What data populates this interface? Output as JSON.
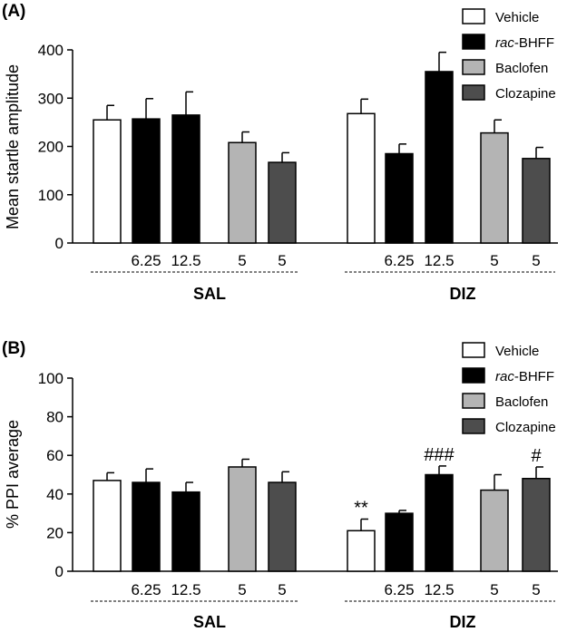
{
  "legend": [
    {
      "prefix": "",
      "italic": "",
      "suffix": "Vehicle",
      "color": "#ffffff"
    },
    {
      "prefix": "",
      "italic": "rac",
      "suffix": "-BHFF",
      "color": "#000000"
    },
    {
      "prefix": "",
      "italic": "",
      "suffix": "Baclofen",
      "color": "#b4b4b4"
    },
    {
      "prefix": "",
      "italic": "",
      "suffix": "Clozapine",
      "color": "#4d4d4d"
    }
  ],
  "chart_data": [
    {
      "type": "bar",
      "panel_label": "(A)",
      "ylabel": "Mean startle amplitude",
      "ylim": [
        0,
        400
      ],
      "yticks": [
        0,
        100,
        200,
        300,
        400
      ],
      "groups": [
        "SAL",
        "DIZ"
      ],
      "dose_labels": [
        "",
        "6.25",
        "12.5",
        "5",
        "5"
      ],
      "series": [
        {
          "name": "Vehicle",
          "values": [
            255,
            268
          ],
          "errors": [
            30,
            30
          ]
        },
        {
          "name": "rac-BHFF 6.25",
          "values": [
            257,
            185
          ],
          "errors": [
            42,
            20
          ]
        },
        {
          "name": "rac-BHFF 12.5",
          "values": [
            265,
            355
          ],
          "errors": [
            48,
            40
          ]
        },
        {
          "name": "Baclofen 5",
          "values": [
            208,
            228
          ],
          "errors": [
            22,
            27
          ]
        },
        {
          "name": "Clozapine 5",
          "values": [
            167,
            175
          ],
          "errors": [
            20,
            23
          ]
        }
      ],
      "annotations": [
        [
          "",
          "",
          "",
          "",
          ""
        ],
        [
          "",
          "",
          "",
          "",
          ""
        ]
      ]
    },
    {
      "type": "bar",
      "panel_label": "(B)",
      "ylabel": "% PPI average",
      "ylim": [
        0,
        100
      ],
      "yticks": [
        0,
        20,
        40,
        60,
        80,
        100
      ],
      "groups": [
        "SAL",
        "DIZ"
      ],
      "dose_labels": [
        "",
        "6.25",
        "12.5",
        "5",
        "5"
      ],
      "series": [
        {
          "name": "Vehicle",
          "values": [
            47,
            21
          ],
          "errors": [
            4,
            6
          ]
        },
        {
          "name": "rac-BHFF 6.25",
          "values": [
            46,
            30
          ],
          "errors": [
            7,
            1.5
          ]
        },
        {
          "name": "rac-BHFF 12.5",
          "values": [
            41,
            50
          ],
          "errors": [
            5,
            4.5
          ]
        },
        {
          "name": "Baclofen 5",
          "values": [
            54,
            42
          ],
          "errors": [
            4,
            8
          ]
        },
        {
          "name": "Clozapine 5",
          "values": [
            46,
            48
          ],
          "errors": [
            5.5,
            6
          ]
        }
      ],
      "annotations": [
        [
          "",
          "",
          "",
          "",
          ""
        ],
        [
          "**",
          "",
          "###",
          "",
          "#"
        ]
      ]
    }
  ]
}
